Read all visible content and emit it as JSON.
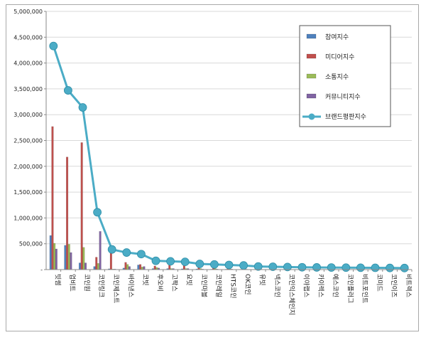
{
  "chart_data": {
    "type": "bar",
    "title": "",
    "xlabel": "",
    "ylabel": "",
    "ylim": [
      0,
      5000000
    ],
    "yticks": [
      "-",
      "500,000",
      "1,000,000",
      "1,500,000",
      "2,000,000",
      "2,500,000",
      "3,000,000",
      "3,500,000",
      "4,000,000",
      "4,500,000",
      "5,000,000"
    ],
    "grid": true,
    "legend_position": "top-right",
    "categories": [
      "빗썸",
      "업비트",
      "코인원",
      "코인링크",
      "코인제스트",
      "바이낸스",
      "코빗",
      "후오비",
      "고팍스",
      "요빗",
      "코인마블",
      "코인레일",
      "HTS코인",
      "OK코인",
      "유빗",
      "넥스코인",
      "코인익스체인지",
      "이야랩스",
      "카이렉스",
      "예스코인",
      "코인플러그",
      "비트포인트",
      "코미드",
      "코인이즈",
      "비트렉스"
    ],
    "series": [
      {
        "name": "참여지수",
        "type": "bar",
        "color": "#4f81bd",
        "values": [
          660000,
          470000,
          130000,
          60000,
          15000,
          30000,
          90000,
          20000,
          20000,
          15000,
          12000,
          8000,
          8000,
          6000,
          6000,
          5000,
          5000,
          4000,
          4000,
          3000,
          3000,
          3000,
          2000,
          2000,
          2000
        ]
      },
      {
        "name": "미디어지수",
        "type": "bar",
        "color": "#c0504d",
        "values": [
          2770000,
          2180000,
          2460000,
          240000,
          360000,
          140000,
          100000,
          70000,
          100000,
          90000,
          60000,
          50000,
          40000,
          40000,
          30000,
          25000,
          25000,
          20000,
          20000,
          15000,
          15000,
          15000,
          12000,
          10000,
          10000
        ]
      },
      {
        "name": "소통지수",
        "type": "bar",
        "color": "#9bbb59",
        "values": [
          510000,
          490000,
          430000,
          120000,
          10000,
          100000,
          50000,
          40000,
          20000,
          20000,
          20000,
          20000,
          15000,
          15000,
          10000,
          10000,
          10000,
          8000,
          8000,
          6000,
          6000,
          6000,
          5000,
          5000,
          5000
        ]
      },
      {
        "name": "커뮤니티지수",
        "type": "bar",
        "color": "#8064a2",
        "values": [
          400000,
          330000,
          130000,
          740000,
          10000,
          60000,
          60000,
          30000,
          20000,
          20000,
          10000,
          10000,
          10000,
          8000,
          8000,
          6000,
          6000,
          5000,
          5000,
          4000,
          4000,
          4000,
          3000,
          3000,
          3000
        ]
      },
      {
        "name": "브랜드평판지수",
        "type": "line",
        "color": "#4bacc6",
        "values": [
          4330000,
          3470000,
          3140000,
          1110000,
          390000,
          330000,
          300000,
          170000,
          160000,
          150000,
          110000,
          100000,
          90000,
          80000,
          60000,
          55000,
          50000,
          45000,
          42000,
          40000,
          38000,
          36000,
          34000,
          32000,
          30000
        ]
      }
    ]
  }
}
